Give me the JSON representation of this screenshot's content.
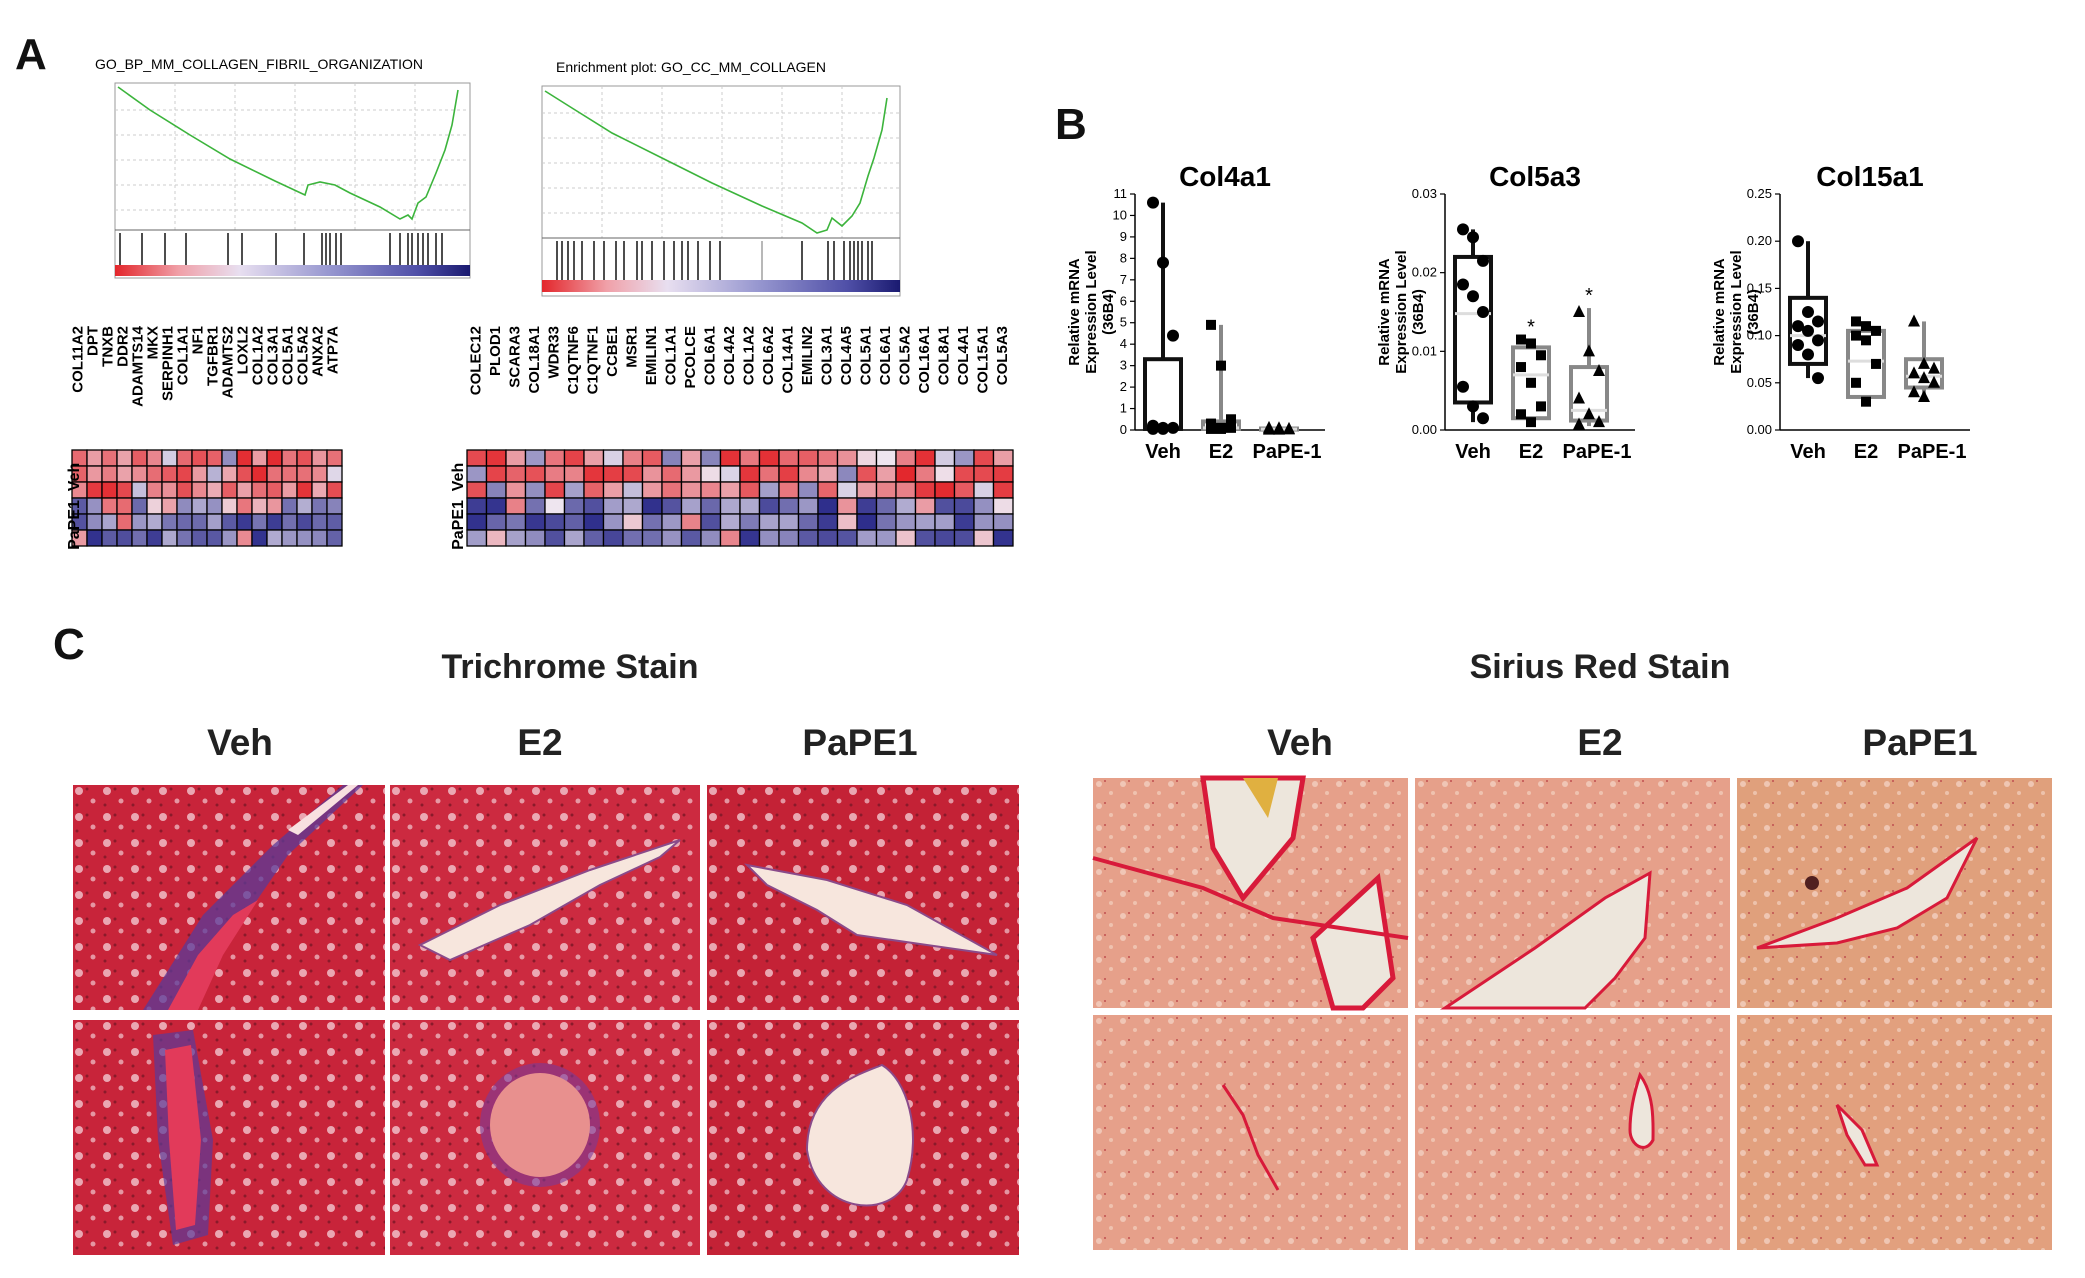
{
  "panels": {
    "A": "A",
    "B": "B",
    "C": "C"
  },
  "gsea": [
    {
      "title": "GO_BP_MM_COLLAGEN_FIBRIL_ORGANIZATION"
    },
    {
      "title": "Enrichment plot: GO_CC_MM_COLLAGEN"
    }
  ],
  "heatmap_left": {
    "genes": [
      "COL11A2",
      "DPT",
      "TNXB",
      "DDR2",
      "ADAMTS14",
      "MKX",
      "SERPINH1",
      "COL1A1",
      "NF1",
      "TGFBR1",
      "ADAMTS2",
      "LOXL2",
      "COL1A2",
      "COL3A1",
      "COL5A1",
      "COL5A2",
      "ANXA2",
      "ATP7A"
    ],
    "groups": [
      "Veh",
      "PaPE1"
    ]
  },
  "heatmap_right": {
    "genes": [
      "COLEC12",
      "PLOD1",
      "SCARA3",
      "COL18A1",
      "WDR33",
      "C1QTNF6",
      "C1QTNF1",
      "CCBE1",
      "MSR1",
      "EMILIN1",
      "COL1A1",
      "PCOLCE",
      "COL6A1",
      "COL4A2",
      "COL1A2",
      "COL6A2",
      "COL14A1",
      "EMILIN2",
      "COL3A1",
      "COL4A5",
      "COL5A1",
      "COL6A1",
      "COL5A2",
      "COL16A1",
      "COL8A1",
      "COL4A1",
      "COL15A1",
      "COL5A3"
    ],
    "groups": [
      "Veh",
      "PaPE1"
    ]
  },
  "boxplots": {
    "ylabel_lines": [
      "Relative mRNA",
      "Expression Level",
      "(36B4)"
    ],
    "categories": [
      "Veh",
      "E2",
      "PaPE-1"
    ],
    "charts": [
      {
        "title": "Col4a1",
        "ylim": [
          0,
          11
        ],
        "yticks": [
          "0",
          "1",
          "2",
          "3",
          "4",
          "5",
          "6",
          "7",
          "8",
          "9",
          "10",
          "11"
        ]
      },
      {
        "title": "Col5a3",
        "ylim": [
          0,
          0.03
        ],
        "yticks": [
          "0.00",
          "0.01",
          "0.02",
          "0.03"
        ]
      },
      {
        "title": "Col15a1",
        "ylim": [
          0,
          0.25
        ],
        "yticks": [
          "0.00",
          "0.05",
          "0.10",
          "0.15",
          "0.20",
          "0.25"
        ]
      }
    ],
    "sig_mark": "*"
  },
  "chart_data": [
    {
      "type": "box",
      "title": "Col4a1",
      "categories": [
        "Veh",
        "E2",
        "PaPE-1"
      ],
      "ylim": [
        0,
        11
      ],
      "points": [
        [
          10.6,
          7.8,
          4.4,
          0.2,
          0.1,
          0.1,
          0.05,
          0.05
        ],
        [
          4.9,
          3.0,
          0.5,
          0.3,
          0.1,
          0.1,
          0.05,
          0.05
        ],
        [
          0.1,
          0.08,
          0.05,
          0.05,
          0.03,
          0.03,
          0.02,
          0.02
        ]
      ],
      "boxes": [
        {
          "min": 0,
          "q1": 0.05,
          "median": 0.1,
          "q3": 3.3,
          "max": 10.6
        },
        {
          "min": 0,
          "q1": 0.05,
          "median": 0.1,
          "q3": 0.4,
          "max": 4.9
        },
        {
          "min": 0,
          "q1": 0.02,
          "median": 0.04,
          "q3": 0.07,
          "max": 0.1
        }
      ]
    },
    {
      "type": "box",
      "title": "Col5a3",
      "categories": [
        "Veh",
        "E2",
        "PaPE-1"
      ],
      "ylim": [
        0,
        0.03
      ],
      "points": [
        [
          0.0255,
          0.0245,
          0.0215,
          0.0185,
          0.017,
          0.015,
          0.0055,
          0.003,
          0.0015
        ],
        [
          0.0115,
          0.011,
          0.0095,
          0.008,
          0.006,
          0.003,
          0.002,
          0.001
        ],
        [
          0.015,
          0.01,
          0.0075,
          0.004,
          0.002,
          0.001,
          0.0007
        ]
      ],
      "boxes": [
        {
          "min": 0.001,
          "q1": 0.0035,
          "median": 0.0148,
          "q3": 0.022,
          "max": 0.0255
        },
        {
          "min": 0.0007,
          "q1": 0.0015,
          "median": 0.007,
          "q3": 0.0105,
          "max": 0.0115
        },
        {
          "min": 0.0005,
          "q1": 0.0012,
          "median": 0.0025,
          "q3": 0.008,
          "max": 0.0155
        }
      ],
      "significance": [
        "",
        "*",
        "*"
      ]
    },
    {
      "type": "box",
      "title": "Col15a1",
      "categories": [
        "Veh",
        "E2",
        "PaPE-1"
      ],
      "ylim": [
        0,
        0.25
      ],
      "points": [
        [
          0.2,
          0.125,
          0.115,
          0.11,
          0.105,
          0.095,
          0.09,
          0.08,
          0.055
        ],
        [
          0.115,
          0.11,
          0.105,
          0.1,
          0.095,
          0.07,
          0.05,
          0.03
        ],
        [
          0.115,
          0.07,
          0.065,
          0.06,
          0.055,
          0.05,
          0.04,
          0.035
        ]
      ],
      "boxes": [
        {
          "min": 0.055,
          "q1": 0.07,
          "median": 0.1,
          "q3": 0.14,
          "max": 0.2
        },
        {
          "min": 0.028,
          "q1": 0.035,
          "median": 0.073,
          "q3": 0.105,
          "max": 0.115
        },
        {
          "min": 0.035,
          "q1": 0.045,
          "median": 0.057,
          "q3": 0.075,
          "max": 0.115
        }
      ]
    }
  ],
  "stains": {
    "trichrome": {
      "title": "Trichrome Stain",
      "columns": [
        "Veh",
        "E2",
        "PaPE1"
      ]
    },
    "sirius": {
      "title": "Sirius Red Stain",
      "columns": [
        "Veh",
        "E2",
        "PaPE1"
      ]
    }
  },
  "colors": {
    "heat_red": "#e3262b",
    "heat_blue": "#2e2e8c",
    "gsea_line": "#3cb43c",
    "trichrome_bg": "#c8243a",
    "sirius_bg": "#e6a08a"
  }
}
